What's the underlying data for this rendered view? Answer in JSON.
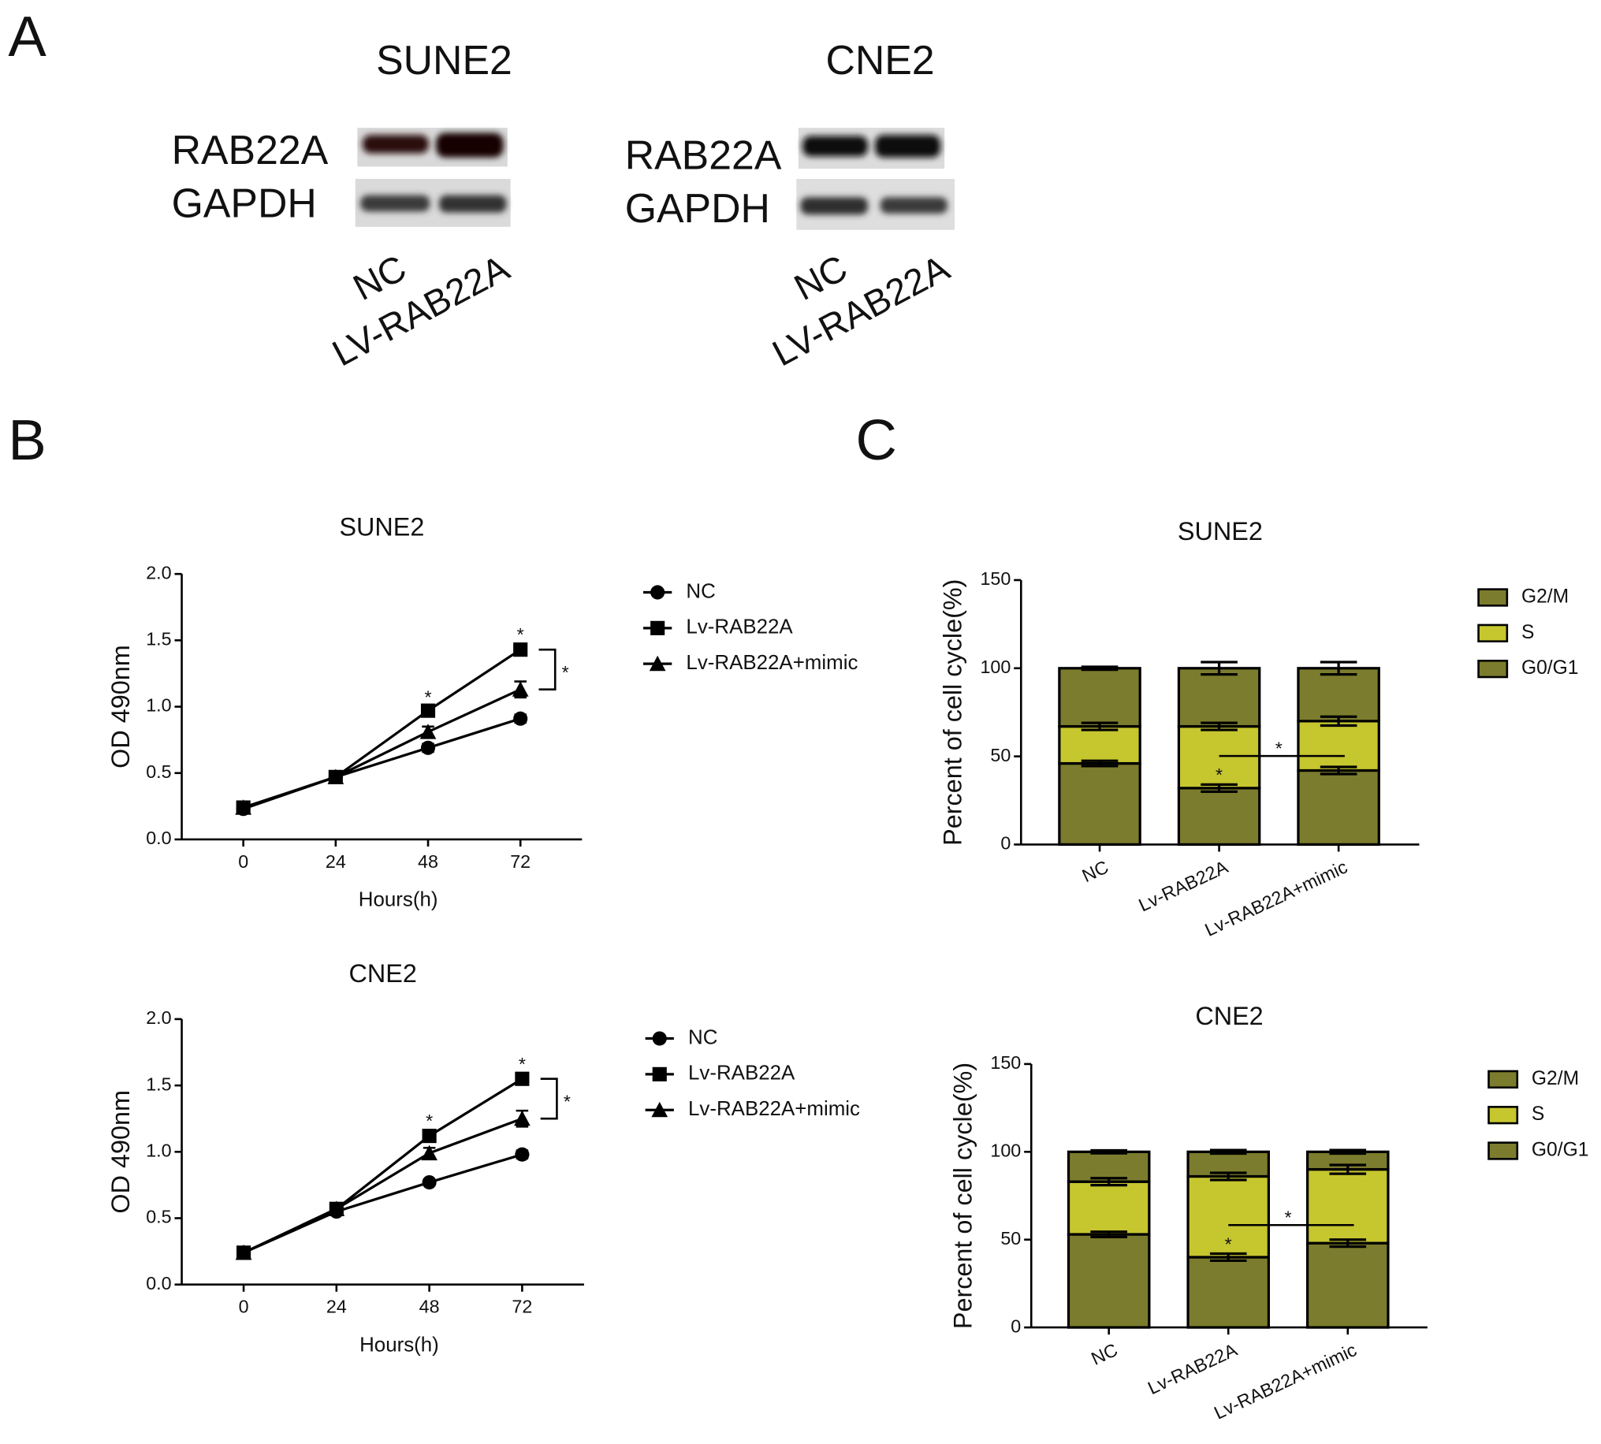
{
  "panel_labels": [
    "A",
    "B",
    "C"
  ],
  "blots": [
    {
      "title": "SUNE2",
      "rows": [
        "RAB22A",
        "GAPDH"
      ],
      "lanes": [
        "NC",
        "LV-RAB22A"
      ]
    },
    {
      "title": "CNE2",
      "rows": [
        "RAB22A",
        "GAPDH"
      ],
      "lanes": [
        "NC",
        "LV-RAB22A"
      ]
    }
  ],
  "chart_data": [
    {
      "type": "line",
      "title": "SUNE2",
      "x_label": "Hours(h)",
      "y_label": "OD 490nm",
      "x": [
        0,
        24,
        48,
        72
      ],
      "xlim": [
        -16,
        88
      ],
      "xticks": [
        0,
        24,
        48,
        72
      ],
      "ylim": [
        0,
        2
      ],
      "yticks": [
        {
          "value": 0,
          "label": "0.0"
        },
        0.5,
        {
          "value": 1,
          "label": "1.0"
        },
        1.5,
        {
          "value": 2,
          "label": "2.0"
        }
      ],
      "series": [
        {
          "name": "NC",
          "color": "#000000",
          "marker": "circle",
          "values": [
            0.23,
            0.47,
            0.69,
            0.91
          ],
          "errors": [
            0.03,
            0.02,
            0.03,
            0.03
          ]
        },
        {
          "name": "Lv-RAB22A",
          "color": "#000000",
          "marker": "square",
          "values": [
            0.24,
            0.47,
            0.97,
            1.43
          ],
          "errors": [
            0.03,
            0.02,
            0.03,
            0.04
          ]
        },
        {
          "name": "Lv-RAB22A+mimic",
          "color": "#000000",
          "marker": "triangle",
          "values": [
            0.24,
            0.47,
            0.81,
            1.13
          ],
          "errors": [
            0.03,
            0.02,
            0.04,
            0.06
          ]
        }
      ],
      "annotations": [
        "*",
        "*",
        "*"
      ]
    },
    {
      "type": "line",
      "title": "CNE2",
      "x_label": "Hours(h)",
      "y_label": "OD 490nm",
      "x": [
        0,
        24,
        48,
        72
      ],
      "xlim": [
        -16,
        88
      ],
      "xticks": [
        0,
        24,
        48,
        72
      ],
      "ylim": [
        0,
        2
      ],
      "yticks": [
        {
          "value": 0,
          "label": "0.0"
        },
        0.5,
        {
          "value": 1,
          "label": "1.0"
        },
        1.5,
        {
          "value": 2,
          "label": "2.0"
        }
      ],
      "series": [
        {
          "name": "NC",
          "color": "#000000",
          "marker": "circle",
          "values": [
            0.24,
            0.55,
            0.77,
            0.98
          ],
          "errors": [
            0.03,
            0.02,
            0.02,
            0.03
          ]
        },
        {
          "name": "Lv-RAB22A",
          "color": "#000000",
          "marker": "square",
          "values": [
            0.24,
            0.57,
            1.12,
            1.55
          ],
          "errors": [
            0.03,
            0.02,
            0.04,
            0.04
          ]
        },
        {
          "name": "Lv-RAB22A+mimic",
          "color": "#000000",
          "marker": "triangle",
          "values": [
            0.24,
            0.57,
            0.99,
            1.25
          ],
          "errors": [
            0.03,
            0.02,
            0.04,
            0.06
          ]
        }
      ],
      "annotations": [
        "*",
        "*",
        "*"
      ]
    },
    {
      "type": "bar",
      "stacked": true,
      "title": "SUNE2",
      "y_label": "Percent of cell cycle(%)",
      "categories": [
        "NC",
        "Lv-RAB22A",
        "Lv-RAB22A+mimic"
      ],
      "ylim": [
        0,
        150
      ],
      "yticks": [
        0,
        50,
        100,
        150
      ],
      "series": [
        {
          "name": "G0/G1",
          "color": "#7c7c2e",
          "values": [
            46,
            32,
            42
          ],
          "errors": [
            1.5,
            2,
            2
          ]
        },
        {
          "name": "S",
          "color": "#c6c62f",
          "values": [
            21,
            35,
            28
          ],
          "errors": [
            2,
            2,
            2.5
          ]
        },
        {
          "name": "G2/M",
          "color": "#7c7c2e",
          "values": [
            33,
            33,
            30
          ],
          "errors": [
            0.8,
            3.5,
            3.5
          ]
        }
      ],
      "annotations": [
        "*",
        "*"
      ]
    },
    {
      "type": "bar",
      "stacked": true,
      "title": "CNE2",
      "y_label": "Percent of cell cycle(%)",
      "categories": [
        "NC",
        "Lv-RAB22A",
        "Lv-RAB22A+mimic"
      ],
      "ylim": [
        0,
        150
      ],
      "yticks": [
        0,
        50,
        100,
        150
      ],
      "series": [
        {
          "name": "G0/G1",
          "color": "#7c7c2e",
          "values": [
            53,
            40,
            48
          ],
          "errors": [
            1.5,
            2,
            2
          ]
        },
        {
          "name": "S",
          "color": "#c6c62f",
          "values": [
            30,
            46,
            42
          ],
          "errors": [
            2,
            2,
            2.5
          ]
        },
        {
          "name": "G2/M",
          "color": "#7c7c2e",
          "values": [
            17,
            14,
            10
          ],
          "errors": [
            0.8,
            1,
            1
          ]
        }
      ],
      "annotations": [
        "*",
        "*"
      ]
    }
  ]
}
